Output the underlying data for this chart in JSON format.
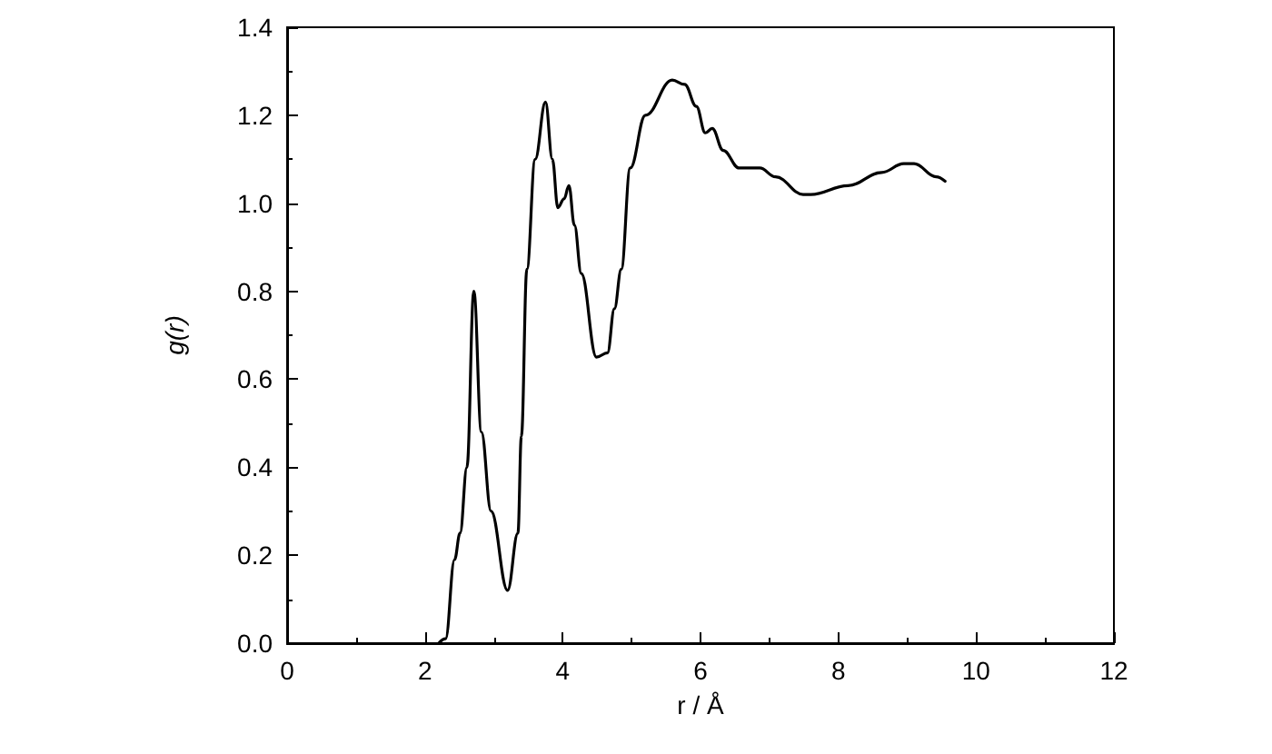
{
  "chart_data": {
    "type": "line",
    "xlabel": "r / Å",
    "ylabel": "g(r)",
    "xlim": [
      0,
      12
    ],
    "xticks": [
      0,
      2,
      4,
      6,
      8,
      10,
      12
    ],
    "ylim": [
      0,
      1.4
    ],
    "yticks": [
      {
        "value": 0,
        "label": "0.0"
      },
      0.2,
      0.4,
      0.6,
      0.8,
      {
        "value": 1,
        "label": "1.0"
      },
      1.2,
      1.4
    ],
    "grid": false,
    "marker": "none",
    "line_style": "solid",
    "series": [
      {
        "color": "#000000",
        "x": [
          2.2,
          2.3,
          2.43,
          2.51,
          2.61,
          2.71,
          2.82,
          2.96,
          3.2,
          3.35,
          3.4,
          3.48,
          3.6,
          3.75,
          3.85,
          3.93,
          4.02,
          4.09,
          4.17,
          4.27,
          4.49,
          4.65,
          4.75,
          4.85,
          4.98,
          5.2,
          5.59,
          5.77,
          5.94,
          6.07,
          6.17,
          6.33,
          6.56,
          6.86,
          7.09,
          7.49,
          7.6,
          8.14,
          8.63,
          8.95,
          9.1,
          9.42,
          9.55
        ],
        "values": [
          0,
          0.01,
          0.19,
          0.25,
          0.4,
          0.8,
          0.48,
          0.3,
          0.12,
          0.25,
          0.47,
          0.85,
          1.1,
          1.23,
          1.1,
          0.99,
          1.01,
          1.04,
          0.95,
          0.84,
          0.65,
          0.66,
          0.76,
          0.85,
          1.08,
          1.2,
          1.28,
          1.27,
          1.22,
          1.16,
          1.17,
          1.12,
          1.08,
          1.08,
          1.06,
          1.02,
          1.02,
          1.04,
          1.07,
          1.09,
          1.09,
          1.06,
          1.05
        ]
      }
    ]
  }
}
